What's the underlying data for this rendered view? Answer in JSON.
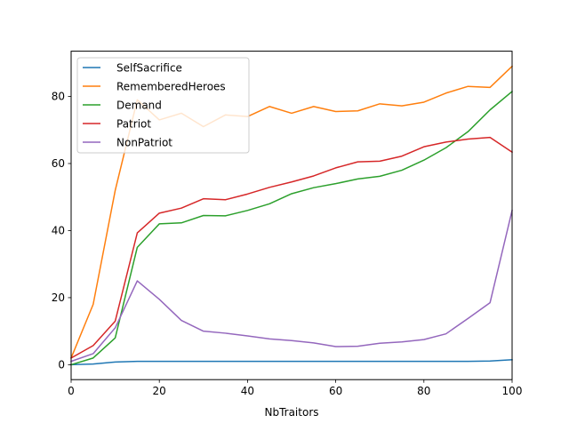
{
  "chart_data": {
    "type": "line",
    "title": "",
    "xlabel": "NbTraitors",
    "ylabel": "",
    "xlim": [
      0,
      100
    ],
    "ylim": [
      -4.45,
      93.5
    ],
    "x_ticks": [
      0,
      20,
      40,
      60,
      80,
      100
    ],
    "y_ticks": [
      0,
      20,
      40,
      60,
      80
    ],
    "grid": false,
    "legend_position": "top-left",
    "x": [
      0,
      5,
      10,
      15,
      20,
      25,
      30,
      35,
      40,
      45,
      50,
      55,
      60,
      65,
      70,
      75,
      80,
      85,
      90,
      95,
      100
    ],
    "series": [
      {
        "name": "SelfSacrifice",
        "color": "#1f77b4",
        "values": [
          0,
          0.2,
          0.8,
          1.0,
          1.0,
          1.0,
          1.0,
          1.0,
          1.0,
          1.0,
          1.0,
          1.0,
          1.0,
          1.0,
          1.0,
          1.0,
          1.0,
          1.0,
          1.0,
          1.1,
          1.5
        ]
      },
      {
        "name": "RememberedHeroes",
        "color": "#ff7f0e",
        "values": [
          2,
          18,
          52,
          79,
          73,
          75,
          71,
          74.5,
          74,
          77,
          75,
          77,
          75.5,
          75.7,
          77.8,
          77.2,
          78.3,
          81,
          83,
          82.7,
          89
        ]
      },
      {
        "name": "Demand",
        "color": "#2ca02c",
        "values": [
          0,
          2,
          8,
          35,
          42,
          42.3,
          44.5,
          44.4,
          46,
          48,
          51,
          52.8,
          54,
          55.4,
          56.2,
          58,
          61,
          64.7,
          69.5,
          76,
          81.5
        ]
      },
      {
        "name": "Patriot",
        "color": "#d62728",
        "values": [
          2,
          5.7,
          13,
          39.3,
          45.2,
          46.7,
          49.5,
          49.2,
          50.9,
          52.9,
          54.5,
          56.3,
          58.7,
          60.5,
          60.7,
          62.2,
          65,
          66.4,
          67.3,
          67.8,
          63.4
        ]
      },
      {
        "name": "NonPatriot",
        "color": "#9467bd",
        "values": [
          1,
          3.3,
          11,
          25,
          19.5,
          13.2,
          10,
          9.4,
          8.6,
          7.7,
          7.2,
          6.5,
          5.4,
          5.5,
          6.4,
          6.8,
          7.5,
          9.2,
          13.8,
          18.5,
          46
        ]
      }
    ]
  }
}
